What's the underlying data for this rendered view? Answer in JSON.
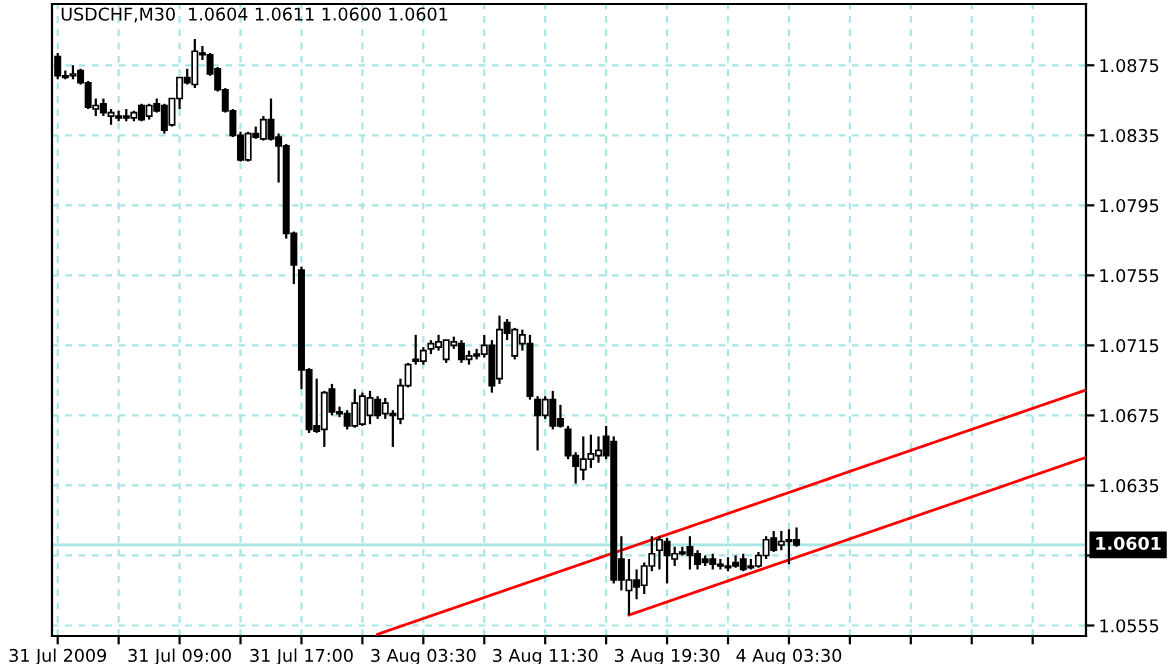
{
  "chart_data": {
    "type": "candlestick",
    "title": "USDCHF,M30  1.0604 1.0611 1.0600 1.0601",
    "categories": [
      "31 Jul 2009",
      null,
      null,
      null,
      null,
      null,
      null,
      null,
      null,
      null,
      null,
      null,
      null,
      null,
      null,
      null,
      "31 Jul 09:00",
      null,
      null,
      null,
      null,
      null,
      null,
      null,
      null,
      null,
      null,
      null,
      null,
      null,
      null,
      null,
      "31 Jul 17:00",
      null,
      null,
      null,
      null,
      null,
      null,
      null,
      null,
      null,
      null,
      null,
      null,
      null,
      null,
      null,
      "3 Aug 03:30",
      null,
      null,
      null,
      null,
      null,
      null,
      null,
      null,
      null,
      null,
      null,
      null,
      null,
      null,
      null,
      "3 Aug 11:30",
      null,
      null,
      null,
      null,
      null,
      null,
      null,
      null,
      null,
      null,
      null,
      null,
      null,
      null,
      null,
      "3 Aug 19:30",
      null,
      null,
      null,
      null,
      null,
      null,
      null,
      null,
      null,
      null,
      null,
      null,
      null,
      null,
      null,
      "4 Aug 03:30",
      null,
      null,
      null,
      null,
      null,
      null,
      null,
      null,
      null,
      null,
      null,
      null,
      null,
      null,
      null,
      null,
      null,
      null,
      null,
      null,
      null,
      null,
      null,
      null,
      null,
      null,
      null,
      null,
      null,
      null,
      null,
      null,
      null,
      null,
      null,
      null,
      null,
      null,
      null
    ],
    "ohlc": [
      [
        1.088,
        1.0882,
        1.0867,
        1.0869
      ],
      [
        1.0869,
        1.0872,
        1.0867,
        1.0868
      ],
      [
        1.0869,
        1.0875,
        1.0867,
        1.087
      ],
      [
        1.0872,
        1.0873,
        1.0864,
        1.0865
      ],
      [
        1.0865,
        1.0866,
        1.085,
        1.0851
      ],
      [
        1.085,
        1.0856,
        1.0846,
        1.0852
      ],
      [
        1.0853,
        1.0856,
        1.0846,
        1.0848
      ],
      [
        1.0846,
        1.085,
        1.0841,
        1.0848
      ],
      [
        1.0845,
        1.0849,
        1.0843,
        1.0846
      ],
      [
        1.0846,
        1.085,
        1.0843,
        1.0845
      ],
      [
        1.0845,
        1.0849,
        1.0843,
        1.0848
      ],
      [
        1.0852,
        1.0853,
        1.0843,
        1.0844
      ],
      [
        1.0846,
        1.0853,
        1.0844,
        1.0852
      ],
      [
        1.0853,
        1.0856,
        1.0848,
        1.0849
      ],
      [
        1.0852,
        1.0853,
        1.0836,
        1.0838
      ],
      [
        1.0841,
        1.0856,
        1.084,
        1.0856
      ],
      [
        1.0856,
        1.0868,
        1.085,
        1.0868
      ],
      [
        1.0868,
        1.0873,
        1.0864,
        1.0865
      ],
      [
        1.0864,
        1.089,
        1.0862,
        1.0883
      ],
      [
        1.0882,
        1.0886,
        1.0878,
        1.0881
      ],
      [
        1.0881,
        1.0882,
        1.0869,
        1.087
      ],
      [
        1.0873,
        1.0874,
        1.086,
        1.0861
      ],
      [
        1.0861,
        1.0862,
        1.0848,
        1.0849
      ],
      [
        1.0849,
        1.085,
        1.0834,
        1.0835
      ],
      [
        1.0835,
        1.0837,
        1.082,
        1.0821
      ],
      [
        1.0821,
        1.0837,
        1.082,
        1.0836
      ],
      [
        1.0836,
        1.084,
        1.0833,
        1.0834
      ],
      [
        1.0833,
        1.0846,
        1.0832,
        1.0844
      ],
      [
        1.0844,
        1.0856,
        1.0832,
        1.0833
      ],
      [
        1.0834,
        1.0836,
        1.0808,
        1.0829
      ],
      [
        1.0829,
        1.083,
        1.0776,
        1.0779
      ],
      [
        1.0779,
        1.078,
        1.075,
        1.0761
      ],
      [
        1.0758,
        1.076,
        1.069,
        1.0701
      ],
      [
        1.0701,
        1.0702,
        1.0665,
        1.0667
      ],
      [
        1.0669,
        1.0696,
        1.0665,
        1.0666
      ],
      [
        1.0667,
        1.0689,
        1.0657,
        1.0688
      ],
      [
        1.069,
        1.0693,
        1.0675,
        1.0677
      ],
      [
        1.0677,
        1.068,
        1.0674,
        1.0676
      ],
      [
        1.0676,
        1.0678,
        1.0667,
        1.0669
      ],
      [
        1.0669,
        1.069,
        1.0668,
        1.0682
      ],
      [
        1.067,
        1.0688,
        1.0669,
        1.0686
      ],
      [
        1.0675,
        1.0689,
        1.067,
        1.0685
      ],
      [
        1.0684,
        1.0686,
        1.0673,
        1.0675
      ],
      [
        1.0676,
        1.0685,
        1.0673,
        1.0682
      ],
      [
        1.0676,
        1.0678,
        1.0657,
        1.0675
      ],
      [
        1.0673,
        1.0696,
        1.067,
        1.0692
      ],
      [
        1.0692,
        1.0705,
        1.0691,
        1.0704
      ],
      [
        1.0706,
        1.0721,
        1.0704,
        1.0707
      ],
      [
        1.0706,
        1.0714,
        1.0704,
        1.0712
      ],
      [
        1.0713,
        1.0718,
        1.071,
        1.0716
      ],
      [
        1.0714,
        1.0721,
        1.0712,
        1.0717
      ],
      [
        1.0707,
        1.0718,
        1.0705,
        1.0718
      ],
      [
        1.0715,
        1.072,
        1.0713,
        1.0717
      ],
      [
        1.0716,
        1.0718,
        1.0705,
        1.0707
      ],
      [
        1.0707,
        1.0712,
        1.0704,
        1.0709
      ],
      [
        1.071,
        1.0713,
        1.0707,
        1.0709
      ],
      [
        1.071,
        1.0721,
        1.0708,
        1.0715
      ],
      [
        1.0715,
        1.0718,
        1.0688,
        1.0692
      ],
      [
        1.0696,
        1.0732,
        1.0693,
        1.0724
      ],
      [
        1.0728,
        1.073,
        1.0718,
        1.0722
      ],
      [
        1.0709,
        1.0725,
        1.0707,
        1.0724
      ],
      [
        1.0716,
        1.0724,
        1.0712,
        1.0721
      ],
      [
        1.0716,
        1.0721,
        1.0684,
        1.0686
      ],
      [
        1.0684,
        1.0686,
        1.0655,
        1.0675
      ],
      [
        1.0675,
        1.0686,
        1.0673,
        1.0684
      ],
      [
        1.0684,
        1.0689,
        1.0667,
        1.0669
      ],
      [
        1.0673,
        1.0681,
        1.0668,
        1.0669
      ],
      [
        1.0667,
        1.0669,
        1.065,
        1.0652
      ],
      [
        1.0652,
        1.0654,
        1.0636,
        1.0646
      ],
      [
        1.0644,
        1.0663,
        1.0638,
        1.065
      ],
      [
        1.065,
        1.0664,
        1.0645,
        1.0653
      ],
      [
        1.0652,
        1.0663,
        1.0648,
        1.0655
      ],
      [
        1.0663,
        1.0669,
        1.065,
        1.0652
      ],
      [
        1.066,
        1.0663,
        1.0579,
        1.0581
      ],
      [
        1.0593,
        1.0606,
        1.0575,
        1.0581
      ],
      [
        1.0575,
        1.0593,
        1.0561,
        1.0581
      ],
      [
        1.0581,
        1.0587,
        1.057,
        1.0577
      ],
      [
        1.0578,
        1.0591,
        1.0573,
        1.0589
      ],
      [
        1.0589,
        1.0606,
        1.0586,
        1.0596
      ],
      [
        1.0598,
        1.0606,
        1.0587,
        1.0604
      ],
      [
        1.0603,
        1.0605,
        1.0579,
        1.0595
      ],
      [
        1.0593,
        1.06,
        1.0589,
        1.0596
      ],
      [
        1.0597,
        1.06,
        1.0595,
        1.0596
      ],
      [
        1.06,
        1.0606,
        1.0587,
        1.0595
      ],
      [
        1.0596,
        1.0598,
        1.0587,
        1.059
      ],
      [
        1.0593,
        1.0595,
        1.0589,
        1.0591
      ],
      [
        1.0593,
        1.0596,
        1.0587,
        1.059
      ],
      [
        1.059,
        1.0593,
        1.0587,
        1.0589
      ],
      [
        1.0589,
        1.0594,
        1.0586,
        1.0588
      ],
      [
        1.0591,
        1.0595,
        1.0588,
        1.0589
      ],
      [
        1.0593,
        1.0596,
        1.0586,
        1.0587
      ],
      [
        1.0589,
        1.0593,
        1.0587,
        1.0588
      ],
      [
        1.0589,
        1.0597,
        1.0588,
        1.0595
      ],
      [
        1.0595,
        1.0606,
        1.0593,
        1.0604
      ],
      [
        1.0605,
        1.0609,
        1.0597,
        1.0598
      ],
      [
        1.0601,
        1.0609,
        1.0598,
        1.0603
      ],
      [
        1.0604,
        1.061,
        1.059,
        1.0603
      ],
      [
        1.0604,
        1.0611,
        1.06,
        1.0601
      ],
      null,
      null,
      null,
      null,
      null,
      null,
      null,
      null,
      null,
      null,
      null,
      null,
      null,
      null,
      null,
      null,
      null,
      null,
      null,
      null,
      null,
      null,
      null,
      null,
      null,
      null,
      null,
      null,
      null,
      null,
      null,
      null,
      null,
      null,
      null,
      null,
      null,
      null
    ],
    "series": [
      {
        "type": "line",
        "color": "#ff0000",
        "values": [
          null,
          null,
          null,
          null,
          null,
          null,
          null,
          null,
          null,
          null,
          null,
          null,
          null,
          null,
          null,
          null,
          null,
          null,
          null,
          null,
          null,
          null,
          null,
          null,
          null,
          null,
          null,
          null,
          null,
          null,
          null,
          null,
          null,
          null,
          null,
          null,
          null,
          null,
          null,
          null,
          null,
          null,
          1.055,
          1.05515,
          1.0553,
          1.05545,
          1.0556,
          1.05575,
          1.0559,
          1.05605,
          1.0562,
          1.05635,
          1.0565,
          1.05665,
          1.0568,
          1.05695,
          1.0571,
          1.05725,
          1.0574,
          1.05755,
          1.0577,
          1.05785,
          1.058,
          1.05815,
          1.0583,
          1.05845,
          1.0586,
          1.05875,
          1.0589,
          1.05905,
          1.0592,
          1.05935,
          1.0595,
          1.05965,
          1.0598,
          1.05995,
          1.0601,
          1.06025,
          1.0604,
          1.06055,
          1.0607,
          1.06085,
          1.061,
          1.06115,
          1.0613,
          1.06145,
          1.0616,
          1.06175,
          1.0619,
          1.06205,
          1.0622,
          1.06235,
          1.0625,
          1.06265,
          1.0628,
          1.06295,
          1.0631,
          1.06325,
          1.0634,
          1.06355,
          1.0637,
          1.06385,
          1.064,
          1.06415,
          1.0643,
          1.06445,
          1.0646,
          1.06475,
          1.0649,
          1.06505,
          1.0652,
          1.06535,
          1.0655,
          1.06565,
          1.0658,
          1.06595,
          1.0661,
          1.06625,
          1.0664,
          1.06655,
          1.0667,
          1.06685,
          1.067,
          1.06715,
          1.0673,
          1.06745,
          1.0676,
          1.06775,
          1.0679,
          1.06805,
          1.0682,
          1.06835,
          1.0685,
          1.06865,
          1.0688,
          1.06895
        ]
      },
      {
        "type": "line",
        "color": "#ff0000",
        "values": [
          null,
          null,
          null,
          null,
          null,
          null,
          null,
          null,
          null,
          null,
          null,
          null,
          null,
          null,
          null,
          null,
          null,
          null,
          null,
          null,
          null,
          null,
          null,
          null,
          null,
          null,
          null,
          null,
          null,
          null,
          null,
          null,
          null,
          null,
          null,
          null,
          null,
          null,
          null,
          null,
          null,
          null,
          null,
          null,
          null,
          null,
          null,
          null,
          null,
          null,
          null,
          null,
          null,
          null,
          null,
          null,
          null,
          null,
          null,
          null,
          null,
          null,
          null,
          null,
          null,
          null,
          null,
          null,
          null,
          null,
          null,
          null,
          null,
          null,
          null,
          1.0561,
          1.05625,
          1.0564,
          1.05655,
          1.0567,
          1.05685,
          1.057,
          1.05715,
          1.0573,
          1.05745,
          1.0576,
          1.05775,
          1.0579,
          1.05805,
          1.0582,
          1.05835,
          1.0585,
          1.05865,
          1.0588,
          1.05895,
          1.0591,
          1.05925,
          1.0594,
          1.05955,
          1.0597,
          1.05985,
          1.06,
          1.06015,
          1.0603,
          1.06045,
          1.0606,
          1.06075,
          1.0609,
          1.06105,
          1.0612,
          1.06135,
          1.0615,
          1.06165,
          1.0618,
          1.06195,
          1.0621,
          1.06225,
          1.0624,
          1.06255,
          1.0627,
          1.06285,
          1.063,
          1.06315,
          1.0633,
          1.06345,
          1.0636,
          1.06375,
          1.0639,
          1.06405,
          1.0642,
          1.06435,
          1.0645,
          1.06465,
          1.0648,
          1.06495,
          1.0651
        ]
      }
    ],
    "ylim": [
      1.0549,
      1.091
    ],
    "yticks": [
      1.0555,
      {
        "value": 1.0595,
        "label": null
      },
      1.0635,
      1.0675,
      1.0715,
      1.0755,
      1.0795,
      1.0835,
      1.0875
    ],
    "ref_lines": [
      {
        "axis": "y",
        "value": 1.0601,
        "label": "1.0601",
        "color": "#a8e6e6"
      }
    ],
    "grid": true
  }
}
